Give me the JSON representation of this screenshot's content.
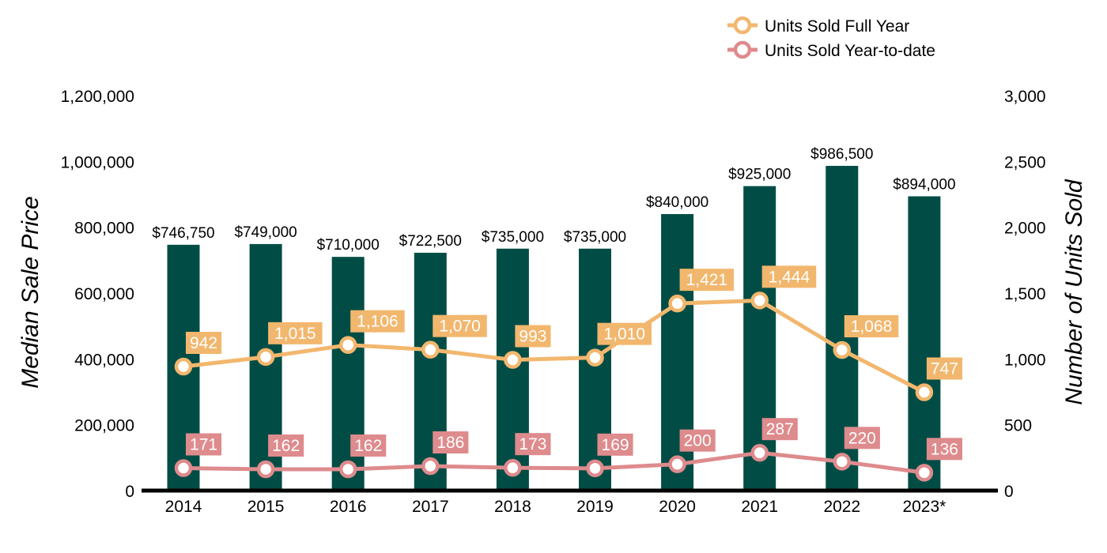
{
  "chart_data": {
    "type": "bar",
    "categories": [
      "2014",
      "2015",
      "2016",
      "2017",
      "2018",
      "2019",
      "2020",
      "2021",
      "2022",
      "2023*"
    ],
    "y_left": {
      "label": "Median Sale Price",
      "range": [
        0,
        1200000
      ],
      "ticks": [
        "0",
        "200,000",
        "400,000",
        "600,000",
        "800,000",
        "1,000,000",
        "1,200,000"
      ]
    },
    "y_right": {
      "label": "Number of Units Sold",
      "range": [
        0,
        3000
      ],
      "ticks": [
        "0",
        "500",
        "1,000",
        "1,500",
        "2,000",
        "2,500",
        "3,000"
      ]
    },
    "grid": false,
    "legend_position": "top-right",
    "series": [
      {
        "type": "bar",
        "axis": "left",
        "color": "#014D45",
        "values": [
          746750,
          749000,
          710000,
          722500,
          735000,
          735000,
          840000,
          925000,
          986500,
          894000
        ],
        "labels": [
          "$746,750",
          "$749,000",
          "$710,000",
          "$722,500",
          "$735,000",
          "$735,000",
          "$840,000",
          "$925,000",
          "$986,500",
          "$894,000"
        ]
      },
      {
        "type": "line",
        "axis": "right",
        "name": "Units Sold Full Year",
        "color": "#F2B76E",
        "values": [
          942,
          1015,
          1106,
          1070,
          993,
          1010,
          1421,
          1444,
          1068,
          747
        ],
        "labels": [
          "942",
          "1,015",
          "1,106",
          "1,070",
          "993",
          "1,010",
          "1,421",
          "1,444",
          "1,068",
          "747"
        ]
      },
      {
        "type": "line",
        "axis": "right",
        "name": "Units Sold Year-to-date",
        "color": "#DE8B8D",
        "values": [
          171,
          162,
          162,
          186,
          173,
          169,
          200,
          287,
          220,
          136
        ],
        "labels": [
          "171",
          "162",
          "162",
          "186",
          "173",
          "169",
          "200",
          "287",
          "220",
          "136"
        ]
      }
    ]
  }
}
